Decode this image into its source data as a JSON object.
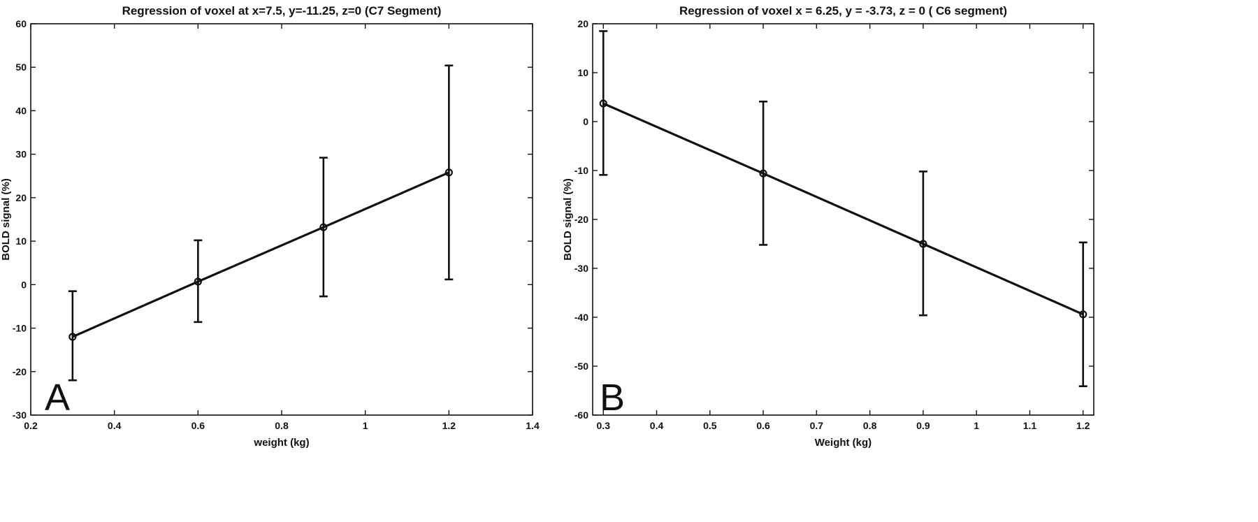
{
  "chart_data": [
    {
      "type": "line",
      "panel_letter": "A",
      "title": "Regression of voxel at x=7.5, y=-11.25, z=0  (C7 Segment)",
      "xlabel": "weight (kg)",
      "ylabel": "BOLD signal (%)",
      "xlim": [
        0.2,
        1.4
      ],
      "ylim": [
        -30,
        60
      ],
      "xticks": [
        0.2,
        0.4,
        0.6,
        0.8,
        1,
        1.2,
        1.4
      ],
      "xtick_labels": [
        "0.2",
        "0.4",
        "0.6",
        "0.8",
        "1",
        "1.2",
        "1.4"
      ],
      "yticks": [
        -30,
        -20,
        -10,
        0,
        10,
        20,
        30,
        40,
        50,
        60
      ],
      "ytick_labels": [
        "-30",
        "-20",
        "-10",
        "0",
        "10",
        "20",
        "30",
        "40",
        "50",
        "60"
      ],
      "grid": false,
      "series": [
        {
          "x": [
            0.3,
            0.6,
            0.9,
            1.2
          ],
          "y": [
            -12,
            0.7,
            13.2,
            25.8
          ],
          "error_low": [
            -22,
            -8.6,
            -2.7,
            1.2
          ],
          "error_high": [
            -1.5,
            10.2,
            29.2,
            50.4
          ]
        }
      ]
    },
    {
      "type": "line",
      "panel_letter": "B",
      "title": "Regression of voxel x = 6.25, y = -3.73, z = 0 ( C6 segment)",
      "xlabel": "Weight (kg)",
      "ylabel": "BOLD signal (%)",
      "xlim": [
        0.28,
        1.22
      ],
      "ylim": [
        -60,
        20
      ],
      "xticks": [
        0.3,
        0.4,
        0.5,
        0.6,
        0.7,
        0.8,
        0.9,
        1,
        1.1,
        1.2
      ],
      "xtick_labels": [
        "0.3",
        "0.4",
        "0.5",
        "0.6",
        "0.7",
        "0.8",
        "0.9",
        "1",
        "1.1",
        "1.2"
      ],
      "yticks": [
        -60,
        -50,
        -40,
        -30,
        -20,
        -10,
        0,
        10,
        20
      ],
      "ytick_labels": [
        "-60",
        "-50",
        "-40",
        "-30",
        "-20",
        "-10",
        "0",
        "10",
        "20"
      ],
      "grid": false,
      "series": [
        {
          "x": [
            0.3,
            0.6,
            0.9,
            1.2
          ],
          "y": [
            3.7,
            -10.6,
            -25,
            -39.4
          ],
          "error_low": [
            -10.9,
            -25.2,
            -39.6,
            -54.1
          ],
          "error_high": [
            18.5,
            4.1,
            -10.2,
            -24.7
          ]
        }
      ]
    }
  ]
}
